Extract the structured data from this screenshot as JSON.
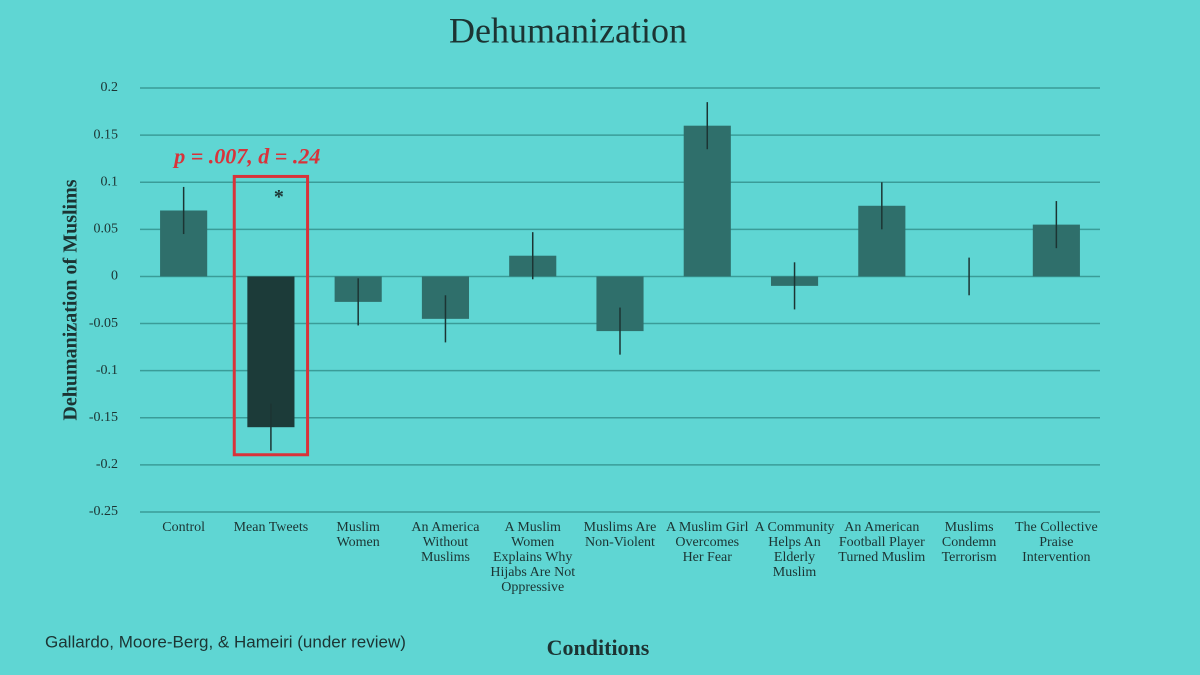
{
  "chart_data": {
    "type": "bar",
    "title": "Dehumanization",
    "x_label": "Conditions",
    "y_label": "Dehumanization of Muslims",
    "source": "Gallardo, Moore-Berg, & Hameiri (under review)",
    "categories": [
      "Control",
      "Mean Tweets",
      "Muslim Women",
      "An America Without Muslims",
      "A Muslim Women Explains Why Hijabs Are Not Oppressive",
      "Muslims Are Non-Violent",
      "A Muslim Girl Overcomes Her Fear",
      "A Community Helps An Elderly Muslim",
      "An American Football Player Turned Muslim",
      "Muslims Condemn Terrorism",
      "The Collective Praise Intervention"
    ],
    "values": [
      0.07,
      -0.16,
      -0.027,
      -0.045,
      0.022,
      -0.058,
      0.16,
      -0.01,
      0.075,
      0.0,
      0.055
    ],
    "errors": [
      0.025,
      0.025,
      0.025,
      0.025,
      0.025,
      0.025,
      0.025,
      0.025,
      0.025,
      0.02,
      0.025
    ],
    "color": "#2f6f6b",
    "highlight_color": "#1c3b39",
    "annotation": {
      "text": "p = .007, d = .24",
      "marker": "*",
      "category_index": 1,
      "color": "#d8333a"
    },
    "ylim": [
      -0.25,
      0.2
    ],
    "yticks": [
      0.2,
      0.15,
      0.1,
      0.05,
      0,
      -0.05,
      -0.1,
      -0.15,
      -0.2,
      -0.25
    ],
    "grid": true
  }
}
